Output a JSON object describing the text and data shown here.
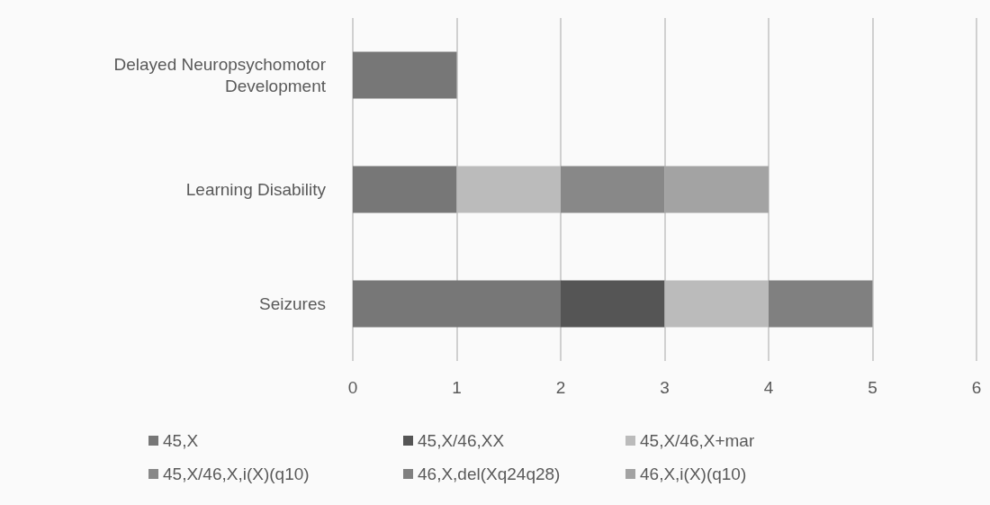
{
  "chart_data": {
    "type": "bar",
    "orientation": "horizontal",
    "stacked": true,
    "categories": [
      "Delayed Neuropsychomotor\nDevelopment",
      "Learning Disability",
      "Seizures"
    ],
    "series": [
      {
        "name": "45,X",
        "color": "#777777",
        "values": [
          1,
          1,
          2
        ]
      },
      {
        "name": "45,X/46,XX",
        "color": "#555555",
        "values": [
          null,
          null,
          1
        ]
      },
      {
        "name": "45,X/46,X+mar",
        "color": "#bbbbbb",
        "values": [
          null,
          1,
          1
        ]
      },
      {
        "name": "45,X/46,X,i(X)(q10)",
        "color": "#888888",
        "values": [
          null,
          1,
          null
        ]
      },
      {
        "name": "46,X,del(Xq24q28)",
        "color": "#808080",
        "values": [
          null,
          null,
          1
        ]
      },
      {
        "name": "46,X,i(X)(q10)",
        "color": "#a3a3a3",
        "values": [
          null,
          1,
          null
        ]
      }
    ],
    "xlim": [
      0,
      6
    ],
    "xticks": [
      0,
      1,
      2,
      3,
      4,
      5,
      6
    ],
    "grid": "x",
    "legend": "bottom"
  }
}
